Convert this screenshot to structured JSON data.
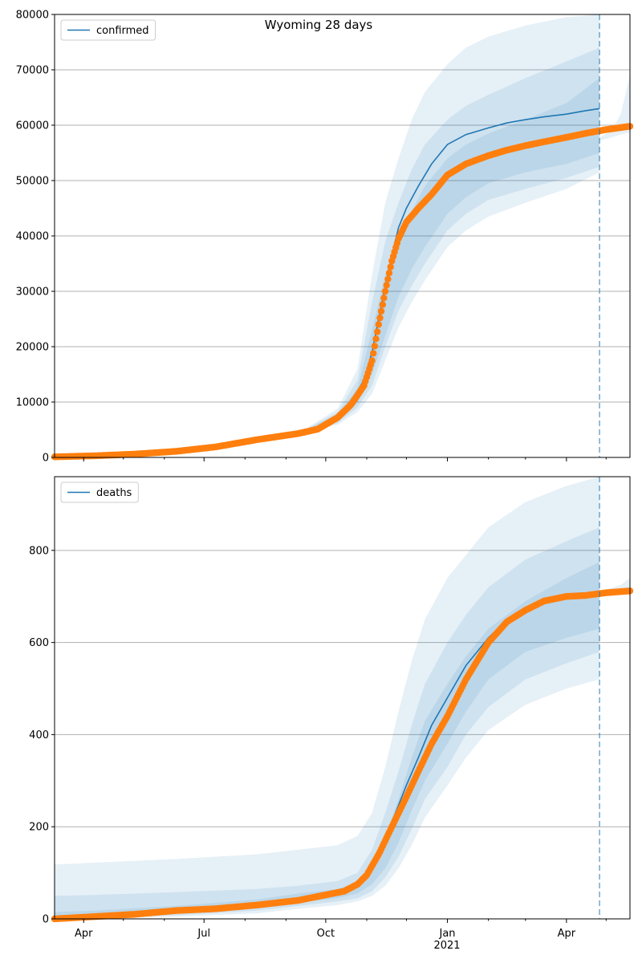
{
  "title": "Wyoming 28 days",
  "colors": {
    "model": "#1f77b4",
    "observed": "#ff7f0e",
    "band": "#1f77b4",
    "grid": "#b0b0b0"
  },
  "chart_data": [
    {
      "type": "line",
      "panel": "top",
      "legend": [
        "confirmed"
      ],
      "legend_placement": "top-left",
      "grid": "y",
      "ylim": [
        0,
        80000
      ],
      "xlim": [
        "2020-03-10",
        "2021-05-19"
      ],
      "forecast_start": "2021-04-26",
      "y_ticks": [
        "0",
        "10000",
        "20000",
        "30000",
        "40000",
        "50000",
        "60000",
        "70000",
        "80000"
      ],
      "x_ticks": [
        "Apr",
        "Jul",
        "Oct",
        "Jan",
        "Apr"
      ],
      "x_year_label": "2021",
      "series": [
        {
          "name": "confirmed",
          "kind": "model-median",
          "x": [
            "2020-03-10",
            "2020-04-10",
            "2020-05-10",
            "2020-06-10",
            "2020-07-10",
            "2020-08-10",
            "2020-09-10",
            "2020-09-25",
            "2020-10-10",
            "2020-10-20",
            "2020-10-30",
            "2020-11-05",
            "2020-11-10",
            "2020-11-15",
            "2020-11-20",
            "2020-11-25",
            "2020-12-01",
            "2020-12-10",
            "2020-12-20",
            "2021-01-01",
            "2021-01-15",
            "2021-02-01",
            "2021-02-15",
            "2021-03-01",
            "2021-03-15",
            "2021-04-01",
            "2021-04-15",
            "2021-04-26"
          ],
          "y": [
            100,
            300,
            600,
            1100,
            1900,
            3300,
            4300,
            5200,
            7400,
            10000,
            14000,
            19000,
            25000,
            31000,
            36500,
            41500,
            45000,
            49000,
            53000,
            56500,
            58300,
            59500,
            60400,
            61000,
            61500,
            62000,
            62600,
            63000
          ]
        },
        {
          "name": "observed",
          "kind": "observed-points",
          "x": [
            "2020-03-10",
            "2020-04-10",
            "2020-05-10",
            "2020-06-10",
            "2020-07-10",
            "2020-08-10",
            "2020-09-10",
            "2020-09-25",
            "2020-10-10",
            "2020-10-20",
            "2020-10-30",
            "2020-11-05",
            "2020-11-10",
            "2020-11-15",
            "2020-11-20",
            "2020-11-25",
            "2020-12-01",
            "2020-12-10",
            "2020-12-20",
            "2021-01-01",
            "2021-01-15",
            "2021-02-01",
            "2021-02-15",
            "2021-03-01",
            "2021-03-15",
            "2021-04-01",
            "2021-04-15",
            "2021-05-01",
            "2021-05-19"
          ],
          "y": [
            100,
            300,
            600,
            1100,
            1900,
            3200,
            4300,
            5100,
            7200,
            9500,
            13000,
            17500,
            24000,
            30000,
            35500,
            39500,
            42500,
            45000,
            47500,
            51000,
            53000,
            54500,
            55500,
            56300,
            57000,
            57800,
            58500,
            59200,
            59800
          ]
        }
      ],
      "bands": [
        {
          "x": [
            "2020-03-10",
            "2020-04-10",
            "2020-05-10",
            "2020-06-10",
            "2020-07-10",
            "2020-08-10",
            "2020-09-10",
            "2020-10-10",
            "2020-10-25",
            "2020-11-05",
            "2020-11-15",
            "2020-11-25",
            "2020-12-05",
            "2020-12-15",
            "2021-01-01",
            "2021-01-15",
            "2021-02-01",
            "2021-03-01",
            "2021-04-01",
            "2021-04-26"
          ],
          "lower": [
            100,
            300,
            600,
            1100,
            1900,
            3300,
            4300,
            6500,
            9800,
            15000,
            22000,
            29000,
            34000,
            38000,
            44000,
            47000,
            49500,
            51500,
            53000,
            55000
          ],
          "upper": [
            100,
            300,
            600,
            1100,
            1900,
            3300,
            4300,
            7800,
            12500,
            23000,
            33000,
            39500,
            44500,
            49000,
            54000,
            56500,
            58500,
            61000,
            64000,
            68500
          ]
        },
        {
          "x": [
            "2020-03-10",
            "2020-04-10",
            "2020-05-10",
            "2020-06-10",
            "2020-07-10",
            "2020-08-10",
            "2020-09-10",
            "2020-10-10",
            "2020-10-25",
            "2020-11-05",
            "2020-11-15",
            "2020-11-25",
            "2020-12-05",
            "2020-12-15",
            "2021-01-01",
            "2021-01-15",
            "2021-02-01",
            "2021-03-01",
            "2021-04-01",
            "2021-04-26"
          ],
          "lower": [
            100,
            300,
            600,
            1100,
            1900,
            3300,
            4300,
            6200,
            9000,
            13000,
            20000,
            26500,
            31000,
            35000,
            41000,
            44000,
            46500,
            48500,
            50500,
            52500
          ],
          "upper": [
            100,
            300,
            600,
            1100,
            1900,
            3300,
            4300,
            8200,
            14000,
            28000,
            39000,
            46000,
            52000,
            56500,
            61000,
            63500,
            65500,
            68500,
            71500,
            74000
          ]
        },
        {
          "x": [
            "2020-03-10",
            "2020-04-10",
            "2020-05-10",
            "2020-06-10",
            "2020-07-10",
            "2020-08-10",
            "2020-09-10",
            "2020-10-10",
            "2020-10-25",
            "2020-11-05",
            "2020-11-15",
            "2020-11-25",
            "2020-12-05",
            "2020-12-15",
            "2021-01-01",
            "2021-01-15",
            "2021-02-01",
            "2021-03-01",
            "2021-04-01",
            "2021-04-26"
          ],
          "lower": [
            100,
            300,
            600,
            1100,
            1900,
            3300,
            4300,
            5900,
            8200,
            11500,
            17500,
            23500,
            28000,
            32000,
            38000,
            41000,
            43500,
            46000,
            48500,
            51500
          ],
          "upper": [
            100,
            300,
            600,
            1100,
            1900,
            3300,
            4300,
            8800,
            16000,
            33000,
            46000,
            54000,
            61000,
            66000,
            71000,
            74000,
            76000,
            78000,
            79500,
            80000
          ]
        },
        {
          "x": [
            "2021-04-26",
            "2021-05-05",
            "2021-05-12",
            "2021-05-19"
          ],
          "lower": [
            57200,
            57800,
            58300,
            58700
          ],
          "upper": [
            57800,
            59000,
            62000,
            69000
          ]
        }
      ]
    },
    {
      "type": "line",
      "panel": "bottom",
      "legend": [
        "deaths"
      ],
      "legend_placement": "top-left",
      "grid": "y",
      "ylim": [
        0,
        960
      ],
      "xlim": [
        "2020-03-10",
        "2021-05-19"
      ],
      "forecast_start": "2021-04-26",
      "y_ticks": [
        "0",
        "200",
        "400",
        "600",
        "800"
      ],
      "x_ticks": [
        "Apr",
        "Jul",
        "Oct",
        "Jan",
        "Apr"
      ],
      "x_year_label": "2021",
      "series": [
        {
          "name": "deaths",
          "kind": "model-median",
          "x": [
            "2020-03-10",
            "2020-04-10",
            "2020-05-10",
            "2020-06-10",
            "2020-07-10",
            "2020-08-10",
            "2020-09-10",
            "2020-10-01",
            "2020-10-15",
            "2020-10-25",
            "2020-11-01",
            "2020-11-10",
            "2020-11-20",
            "2020-12-01",
            "2020-12-10",
            "2020-12-20",
            "2021-01-01",
            "2021-01-15",
            "2021-02-01",
            "2021-02-15",
            "2021-03-01",
            "2021-03-15",
            "2021-04-01",
            "2021-04-15",
            "2021-04-26"
          ],
          "y": [
            0,
            3,
            10,
            18,
            22,
            30,
            42,
            52,
            62,
            78,
            100,
            150,
            210,
            290,
            350,
            420,
            480,
            550,
            610,
            650,
            675,
            688,
            695,
            700,
            705
          ]
        },
        {
          "name": "observed",
          "kind": "observed-points",
          "x": [
            "2020-03-10",
            "2020-04-10",
            "2020-05-10",
            "2020-06-10",
            "2020-07-10",
            "2020-08-10",
            "2020-09-10",
            "2020-10-01",
            "2020-10-15",
            "2020-10-25",
            "2020-11-01",
            "2020-11-10",
            "2020-11-20",
            "2020-12-01",
            "2020-12-10",
            "2020-12-20",
            "2021-01-01",
            "2021-01-15",
            "2021-02-01",
            "2021-02-15",
            "2021-03-01",
            "2021-03-15",
            "2021-04-01",
            "2021-04-15",
            "2021-05-01",
            "2021-05-19"
          ],
          "y": [
            0,
            5,
            10,
            18,
            22,
            30,
            40,
            52,
            60,
            75,
            95,
            140,
            200,
            265,
            320,
            380,
            440,
            520,
            600,
            645,
            670,
            690,
            700,
            702,
            708,
            712
          ]
        }
      ],
      "bands": [
        {
          "x": [
            "2020-03-10",
            "2020-04-10",
            "2020-06-10",
            "2020-08-10",
            "2020-09-10",
            "2020-10-10",
            "2020-10-25",
            "2020-11-05",
            "2020-11-15",
            "2020-11-25",
            "2020-12-05",
            "2020-12-15",
            "2021-01-01",
            "2021-01-15",
            "2021-02-01",
            "2021-03-01",
            "2021-04-01",
            "2021-04-26"
          ],
          "lower": [
            0,
            5,
            12,
            25,
            35,
            45,
            55,
            75,
            110,
            165,
            235,
            300,
            380,
            450,
            520,
            580,
            610,
            630
          ],
          "upper": [
            15,
            18,
            28,
            42,
            55,
            65,
            80,
            120,
            180,
            260,
            350,
            430,
            510,
            570,
            630,
            690,
            740,
            775
          ]
        },
        {
          "x": [
            "2020-03-10",
            "2020-04-10",
            "2020-06-10",
            "2020-08-10",
            "2020-09-10",
            "2020-10-10",
            "2020-10-25",
            "2020-11-05",
            "2020-11-15",
            "2020-11-25",
            "2020-12-05",
            "2020-12-15",
            "2021-01-01",
            "2021-01-15",
            "2021-02-01",
            "2021-03-01",
            "2021-04-01",
            "2021-04-26"
          ],
          "lower": [
            0,
            3,
            8,
            18,
            28,
            38,
            45,
            60,
            90,
            135,
            195,
            260,
            330,
            400,
            460,
            520,
            555,
            580
          ],
          "upper": [
            50,
            52,
            58,
            65,
            72,
            82,
            100,
            150,
            230,
            320,
            420,
            510,
            600,
            660,
            720,
            780,
            820,
            850
          ]
        },
        {
          "x": [
            "2020-03-10",
            "2020-04-10",
            "2020-06-10",
            "2020-08-10",
            "2020-09-10",
            "2020-10-10",
            "2020-10-25",
            "2020-11-05",
            "2020-11-15",
            "2020-11-25",
            "2020-12-05",
            "2020-12-15",
            "2021-01-01",
            "2021-01-15",
            "2021-02-01",
            "2021-03-01",
            "2021-04-01",
            "2021-04-26"
          ],
          "lower": [
            0,
            2,
            5,
            12,
            22,
            30,
            38,
            50,
            72,
            110,
            160,
            220,
            290,
            350,
            410,
            465,
            500,
            520
          ],
          "upper": [
            118,
            122,
            130,
            140,
            150,
            160,
            180,
            230,
            330,
            450,
            560,
            650,
            740,
            790,
            850,
            905,
            940,
            960
          ]
        },
        {
          "x": [
            "2021-04-26",
            "2021-05-05",
            "2021-05-12",
            "2021-05-19"
          ],
          "lower": [
            702,
            705,
            708,
            710
          ],
          "upper": [
            712,
            718,
            725,
            740
          ]
        }
      ]
    }
  ]
}
